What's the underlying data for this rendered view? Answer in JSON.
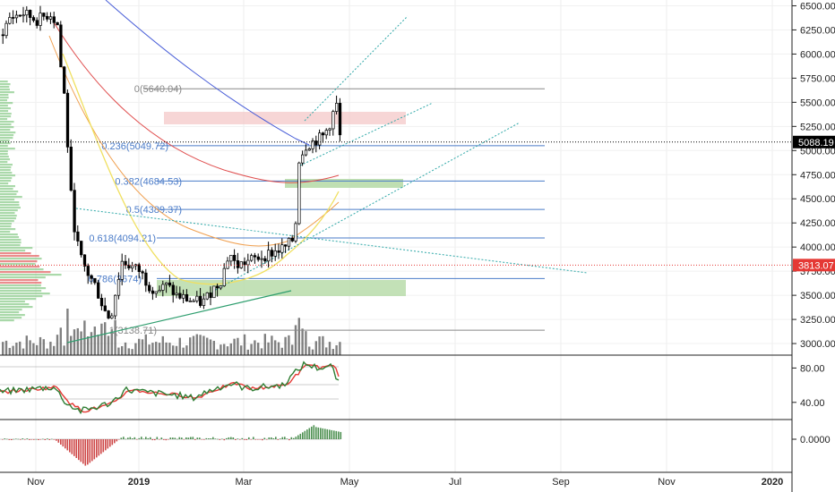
{
  "chart_data": [
    {
      "type": "candlestick",
      "title": "",
      "ylim": [
        2880,
        6560
      ],
      "y_ticks": [
        "6500.00",
        "6250.00",
        "6000.00",
        "5750.00",
        "5500.00",
        "5250.00",
        "5000.00",
        "4750.00",
        "4500.00",
        "4250.00",
        "4000.00",
        "3750.00",
        "3500.00",
        "3250.00",
        "3000.00"
      ],
      "y_tick_values": [
        6500,
        6250,
        6000,
        5750,
        5500,
        5250,
        5000,
        4750,
        4500,
        4250,
        4000,
        3750,
        3500,
        3250,
        3000
      ],
      "x_labels": [
        "Nov",
        "2019",
        "Mar",
        "May",
        "Jul",
        "Sep",
        "Nov",
        "2020"
      ],
      "last_price": {
        "label": "5088.19",
        "value": 5088.19,
        "color": "#000000"
      },
      "marker_price": {
        "label": "3813.07",
        "value": 3813.07,
        "color": "#e53935"
      },
      "fib_levels": [
        {
          "label": "0(5640.04)",
          "value": 5640.04,
          "color": "#888888"
        },
        {
          "label": "0.236(5049.72)",
          "value": 5049.72,
          "color": "#4a7bc8"
        },
        {
          "label": "0.382(4684.53)",
          "value": 4684.53,
          "color": "#4a7bc8"
        },
        {
          "label": "0.5(4389.37)",
          "value": 4389.37,
          "color": "#4a7bc8"
        },
        {
          "label": "0.618(4094.21)",
          "value": 4094.21,
          "color": "#4a7bc8"
        },
        {
          "label": "0.786(3674)",
          "value": 3674,
          "color": "#4a7bc8"
        },
        {
          "label": "1(3138.71)",
          "value": 3138.71,
          "color": "#888888"
        }
      ],
      "moving_average_colors": [
        "#4a5fd8",
        "#e05050",
        "#f0a050",
        "#f0e060"
      ],
      "candle_colors": {
        "up": "#ffffff",
        "down": "#000000",
        "wick": "#000000"
      },
      "volume_profile_colors": {
        "up": "#7cc47c",
        "down": "#e05050"
      },
      "zone_colors": {
        "resistance": "#f4c4c4",
        "support": "#b8dcaa"
      },
      "trendline_color": "#2fa8a8"
    },
    {
      "type": "line",
      "title": "",
      "ylim": [
        20,
        95
      ],
      "y_ticks": [
        "80.00",
        "40.00"
      ],
      "y_tick_values": [
        80,
        40
      ],
      "series_colors": [
        "#2e7d32",
        "#e53935"
      ]
    },
    {
      "type": "bar",
      "title": "",
      "ylim": [
        -1,
        1
      ],
      "y_ticks": [
        "0.0000"
      ],
      "y_tick_values": [
        0
      ],
      "series_colors": [
        "#2e7d32",
        "#c62828"
      ]
    }
  ]
}
